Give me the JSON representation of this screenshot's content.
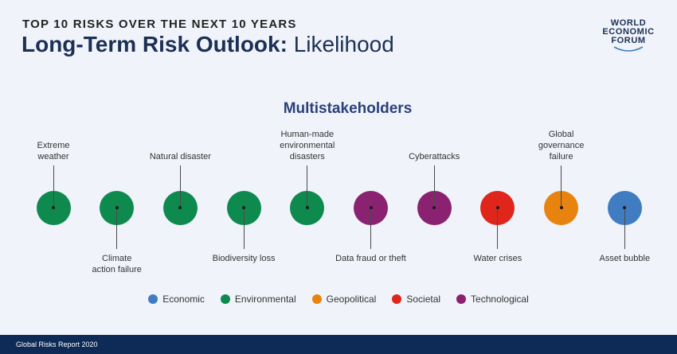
{
  "header": {
    "kicker": "TOP 10 RISKS OVER THE NEXT 10 YEARS",
    "title_bold": "Long-Term Risk Outlook:",
    "title_light": "Likelihood"
  },
  "logo": {
    "line1": "WORLD",
    "line2": "ECONOMIC",
    "line3": "FORUM"
  },
  "subtitle": "Multistakeholders",
  "colors": {
    "economic": "#3f7cc1",
    "environmental": "#0e8a4f",
    "geopolitical": "#e8830f",
    "societal": "#e0261b",
    "technological": "#8a2171"
  },
  "risks": [
    {
      "label": [
        "Extreme",
        "weather"
      ],
      "category": "environmental",
      "position": "top"
    },
    {
      "label": [
        "Climate",
        "action failure"
      ],
      "category": "environmental",
      "position": "bottom"
    },
    {
      "label": [
        "Natural disaster"
      ],
      "category": "environmental",
      "position": "top"
    },
    {
      "label": [
        "Biodiversity loss"
      ],
      "category": "environmental",
      "position": "bottom"
    },
    {
      "label": [
        "Human-made",
        "environmental",
        "disasters"
      ],
      "category": "environmental",
      "position": "top"
    },
    {
      "label": [
        "Data fraud or theft"
      ],
      "category": "technological",
      "position": "bottom"
    },
    {
      "label": [
        "Cyberattacks"
      ],
      "category": "technological",
      "position": "top"
    },
    {
      "label": [
        "Water crises"
      ],
      "category": "societal",
      "position": "bottom"
    },
    {
      "label": [
        "Global",
        "governance",
        "failure"
      ],
      "category": "geopolitical",
      "position": "top"
    },
    {
      "label": [
        "Asset bubble"
      ],
      "category": "economic",
      "position": "bottom"
    }
  ],
  "legend": [
    {
      "label": "Economic",
      "category": "economic"
    },
    {
      "label": "Environmental",
      "category": "environmental"
    },
    {
      "label": "Geopolitical",
      "category": "geopolitical"
    },
    {
      "label": "Societal",
      "category": "societal"
    },
    {
      "label": "Technological",
      "category": "technological"
    }
  ],
  "footer": "Global Risks Report 2020"
}
